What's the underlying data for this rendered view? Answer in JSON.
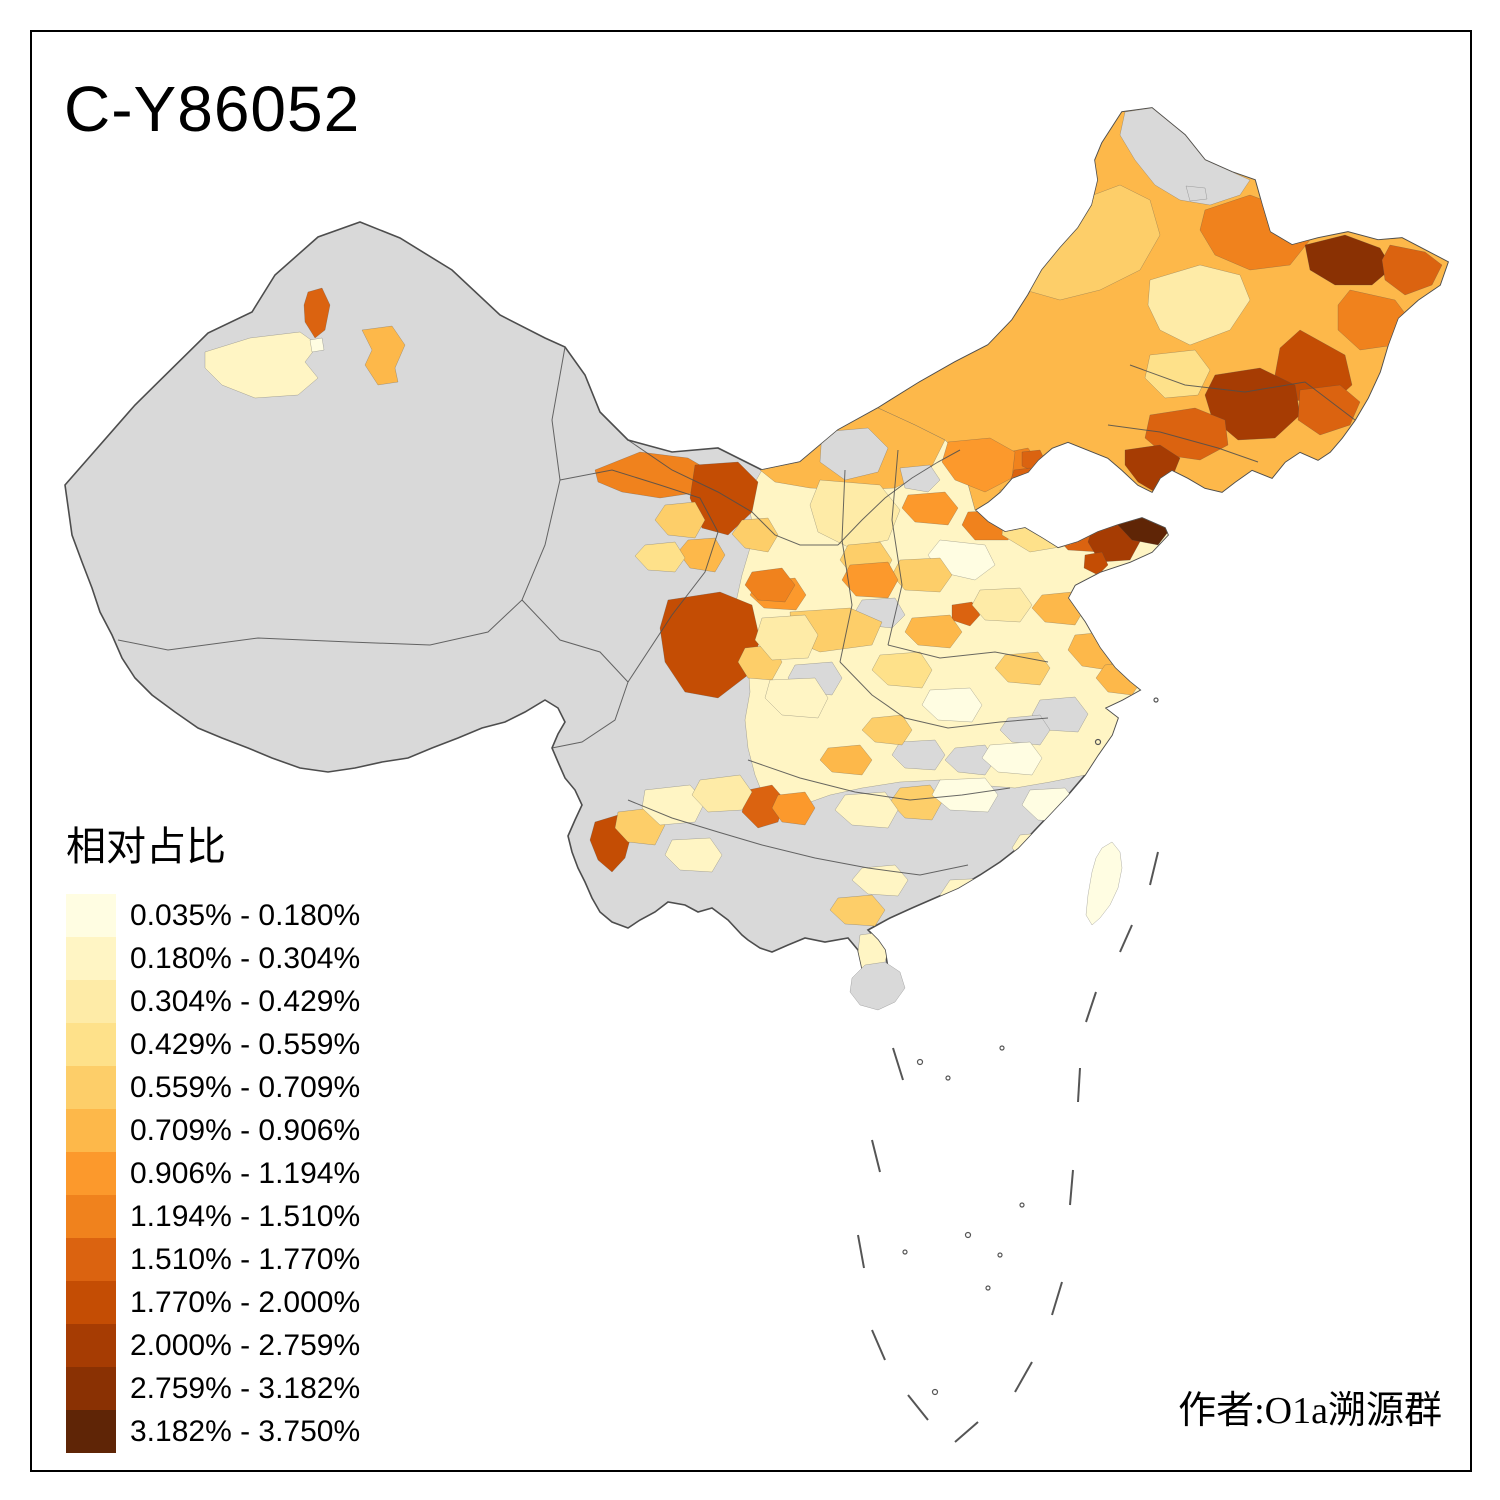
{
  "title": "C-Y86052",
  "attribution": "作者:O1a溯源群",
  "legend": {
    "title": "相对占比",
    "classes": [
      {
        "label": "0.035% - 0.180%",
        "color": "#FFFDE2"
      },
      {
        "label": "0.180% - 0.304%",
        "color": "#FFF5C4"
      },
      {
        "label": "0.304% - 0.429%",
        "color": "#FEEBA7"
      },
      {
        "label": "0.429% - 0.559%",
        "color": "#FEE18A"
      },
      {
        "label": "0.559% - 0.709%",
        "color": "#FDCE69"
      },
      {
        "label": "0.709% - 0.906%",
        "color": "#FDB84A"
      },
      {
        "label": "0.906% - 1.194%",
        "color": "#FC992C"
      },
      {
        "label": "1.194% - 1.510%",
        "color": "#F0821D"
      },
      {
        "label": "1.510% - 1.770%",
        "color": "#DB6310"
      },
      {
        "label": "1.770% - 2.000%",
        "color": "#C44D04"
      },
      {
        "label": "2.000% - 2.759%",
        "color": "#A63C03"
      },
      {
        "label": "2.759% - 3.182%",
        "color": "#8A3103"
      },
      {
        "label": "3.182% - 3.750%",
        "color": "#5F2506"
      }
    ]
  },
  "map": {
    "no_data_color": "#D9D9D9",
    "boundary_color": "#4D4D4D",
    "sea_color": "#FFFFFF"
  },
  "chart_data": {
    "type": "choropleth",
    "region": "China prefecture-level divisions",
    "measure_title": "相对占比",
    "unit": "%",
    "bins": [
      [
        0.035,
        0.18
      ],
      [
        0.18,
        0.304
      ],
      [
        0.304,
        0.429
      ],
      [
        0.429,
        0.559
      ],
      [
        0.559,
        0.709
      ],
      [
        0.709,
        0.906
      ],
      [
        0.906,
        1.194
      ],
      [
        1.194,
        1.51
      ],
      [
        1.51,
        1.77
      ],
      [
        1.77,
        2.0
      ],
      [
        2.0,
        2.759
      ],
      [
        2.759,
        3.182
      ],
      [
        3.182,
        3.75
      ]
    ],
    "legend_position": "bottom-left",
    "no_data": "gray"
  }
}
